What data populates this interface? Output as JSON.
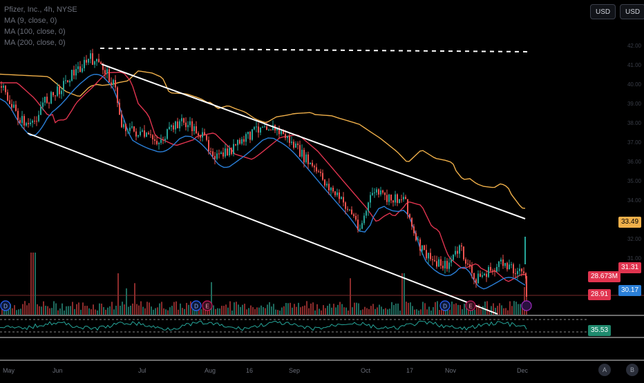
{
  "header": {
    "symbol_line": "Pfizer, Inc., 4h, NYSE",
    "ma_lines": [
      "MA (9, close, 0)",
      "MA (100, close, 0)",
      "MA (200, close, 0)"
    ]
  },
  "toolbar": {
    "currency_left": "USD",
    "currency_right": "USD"
  },
  "price_labels": {
    "ma200": "33.49",
    "ma100": "31.31",
    "volume": "28.673M",
    "ma9": "30.17",
    "last_price": "28.91",
    "rsi": "35.53"
  },
  "colors": {
    "ma200": "#f0b04a",
    "ma100": "#e0344f",
    "ma9": "#2a7fd8",
    "up": "#26a69a",
    "down": "#ef5350",
    "rsi": "#26a69a"
  },
  "y_axis": [
    "42.00",
    "41.00",
    "40.00",
    "39.00",
    "38.00",
    "37.00",
    "36.00",
    "35.00",
    "34.00",
    "33.00",
    "32.00",
    "31.00"
  ],
  "x_axis": [
    "May",
    "Jun",
    "Jul",
    "Aug",
    "16",
    "Sep",
    "Oct",
    "17",
    "Nov",
    "Dec"
  ],
  "event_markers": [
    "D",
    "D",
    "E",
    "D",
    "E",
    "D"
  ],
  "bottom_buttons": [
    "A",
    "B"
  ]
}
